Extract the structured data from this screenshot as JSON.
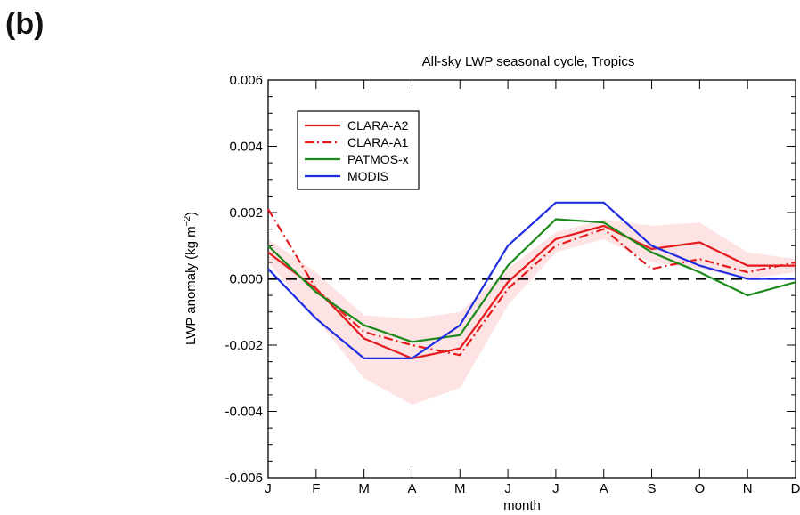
{
  "panel_label": "(b)",
  "chart_data": {
    "type": "line",
    "title": "All-sky LWP seasonal cycle, Tropics",
    "xlabel": "month",
    "ylabel": "LWP anomaly (kg m",
    "ylabel_sup": "−2",
    "ylabel_close": ")",
    "categories": [
      "J",
      "F",
      "M",
      "A",
      "M",
      "J",
      "J",
      "A",
      "S",
      "O",
      "N",
      "D"
    ],
    "ylim": [
      -0.006,
      0.006
    ],
    "yticks": [
      -0.006,
      -0.004,
      -0.002,
      0.0,
      0.002,
      0.004,
      0.006
    ],
    "ytick_labels": [
      "-0.006",
      "-0.004",
      "-0.002",
      "0.000",
      "0.002",
      "0.004",
      "0.006"
    ],
    "zero_line": true,
    "legend_position": "top-left",
    "uncertainty_band": {
      "color": "#fde3e3",
      "upper": [
        0.0012,
        0.0002,
        -0.0011,
        -0.0012,
        -0.001,
        0.0003,
        0.0014,
        0.0018,
        0.0016,
        0.0017,
        0.0008,
        0.0006
      ],
      "lower": [
        0.0005,
        -0.0012,
        -0.003,
        -0.0038,
        -0.0033,
        -0.0008,
        0.0008,
        0.0012,
        0.0005,
        0.0003,
        0.0,
        0.0002
      ]
    },
    "series": [
      {
        "name": "CLARA-A2",
        "color": "#e41a1c",
        "dash": "solid",
        "values": [
          0.0008,
          -0.0003,
          -0.0018,
          -0.0024,
          -0.0021,
          -0.0001,
          0.0012,
          0.0016,
          0.0009,
          0.0011,
          0.0004,
          0.0004
        ]
      },
      {
        "name": "CLARA-A1",
        "color": "#e41a1c",
        "dash": "dashdot",
        "values": [
          0.0021,
          -0.0003,
          -0.0016,
          -0.002,
          -0.0023,
          -0.0003,
          0.001,
          0.0015,
          0.0003,
          0.0006,
          0.0002,
          0.0005
        ]
      },
      {
        "name": "PATMOS-x",
        "color": "#1b8a1b",
        "dash": "solid",
        "values": [
          0.001,
          -0.0004,
          -0.0014,
          -0.0019,
          -0.0017,
          0.0004,
          0.0018,
          0.0017,
          0.0008,
          0.0002,
          -0.0005,
          -0.0001
        ]
      },
      {
        "name": "MODIS",
        "color": "#1f2ee0",
        "dash": "solid",
        "values": [
          0.0003,
          -0.0012,
          -0.0024,
          -0.0024,
          -0.0014,
          0.001,
          0.0023,
          0.0023,
          0.001,
          0.0004,
          0.0,
          0.0
        ]
      }
    ]
  }
}
